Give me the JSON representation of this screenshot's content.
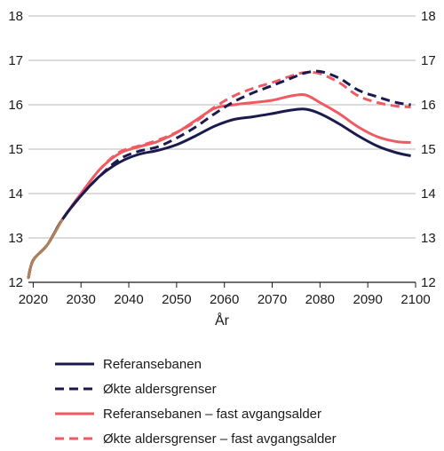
{
  "chart_data": {
    "type": "line",
    "xlabel": "År",
    "ylabel": "",
    "xlim": [
      2019,
      2100
    ],
    "ylim": [
      12,
      18
    ],
    "x_ticks": [
      "2020",
      "2030",
      "2040",
      "2050",
      "2060",
      "2070",
      "2080",
      "2090",
      "2100"
    ],
    "y_ticks": [
      "12",
      "13",
      "14",
      "15",
      "16",
      "17",
      "18"
    ],
    "grid": true,
    "legend_position": "bottom",
    "series": [
      {
        "name": "Referansebanen",
        "color": "#1b1a4f",
        "dash": "solid",
        "x": [
          2019,
          2020,
          2023,
          2026,
          2030,
          2034,
          2038,
          2042,
          2046,
          2050,
          2054,
          2058,
          2062,
          2066,
          2070,
          2074,
          2077,
          2080,
          2084,
          2088,
          2092,
          2096,
          2099
        ],
        "y": [
          12.1,
          12.5,
          12.85,
          13.4,
          13.95,
          14.4,
          14.7,
          14.88,
          14.97,
          15.1,
          15.3,
          15.52,
          15.67,
          15.73,
          15.8,
          15.88,
          15.9,
          15.8,
          15.57,
          15.3,
          15.07,
          14.92,
          14.85
        ]
      },
      {
        "name": "Økte aldersgrenser",
        "color": "#1b1a4f",
        "dash": "dashed",
        "x": [
          2019,
          2020,
          2023,
          2026,
          2030,
          2034,
          2038,
          2042,
          2046,
          2050,
          2054,
          2058,
          2062,
          2066,
          2070,
          2074,
          2077,
          2080,
          2084,
          2088,
          2092,
          2096,
          2099
        ],
        "y": [
          12.1,
          12.5,
          12.85,
          13.4,
          13.95,
          14.4,
          14.77,
          14.95,
          15.05,
          15.25,
          15.5,
          15.8,
          16.07,
          16.27,
          16.43,
          16.6,
          16.72,
          16.75,
          16.6,
          16.33,
          16.18,
          16.05,
          16.0
        ]
      },
      {
        "name": "Referansebanen – fast avgangsalder",
        "color": "#f05a62",
        "dash": "solid",
        "x": [
          2019,
          2020,
          2023,
          2026,
          2030,
          2034,
          2038,
          2042,
          2046,
          2050,
          2054,
          2058,
          2062,
          2066,
          2070,
          2074,
          2077,
          2080,
          2084,
          2088,
          2092,
          2096,
          2099
        ],
        "y": [
          12.1,
          12.5,
          12.85,
          13.4,
          14.0,
          14.55,
          14.9,
          15.05,
          15.17,
          15.37,
          15.65,
          15.92,
          16.0,
          16.05,
          16.1,
          16.2,
          16.22,
          16.05,
          15.8,
          15.5,
          15.28,
          15.17,
          15.15
        ]
      },
      {
        "name": "Økte aldersgrenser – fast avgangsalder",
        "color": "#f05a62",
        "dash": "dashed",
        "x": [
          2019,
          2020,
          2023,
          2026,
          2030,
          2034,
          2038,
          2042,
          2046,
          2050,
          2054,
          2058,
          2062,
          2066,
          2070,
          2074,
          2077,
          2080,
          2084,
          2088,
          2092,
          2096,
          2099
        ],
        "y": [
          12.1,
          12.5,
          12.85,
          13.4,
          14.0,
          14.55,
          14.93,
          15.07,
          15.2,
          15.38,
          15.62,
          15.95,
          16.2,
          16.37,
          16.5,
          16.65,
          16.73,
          16.7,
          16.5,
          16.2,
          16.05,
          15.97,
          15.95
        ]
      }
    ],
    "segment_note_color": "#b0825a"
  }
}
